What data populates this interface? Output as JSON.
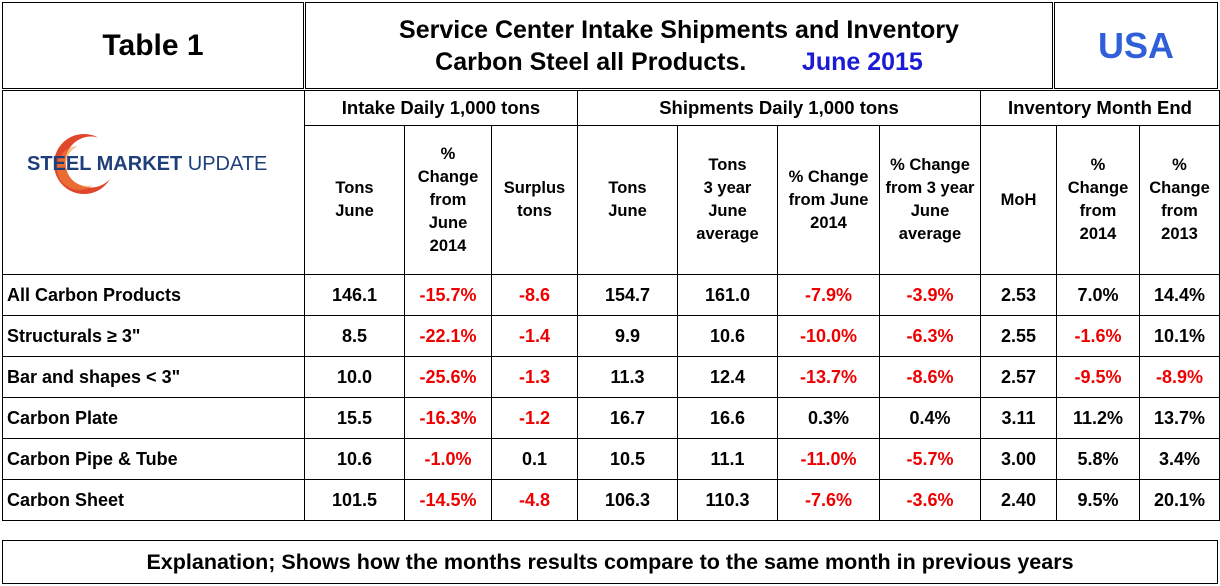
{
  "header": {
    "table_label": "Table 1",
    "title_line1": "Service Center Intake Shipments and Inventory",
    "title_line2": "Carbon Steel all Products.",
    "title_date": "June 2015",
    "country": "USA"
  },
  "logo": {
    "word1": "STEEL",
    "word2": " MARKET",
    "word3": " UPDATE",
    "colors": {
      "dark": "#1e3f7a",
      "accent": "#e0462c"
    }
  },
  "colors": {
    "negative": "#ee0000",
    "date": "#1b1bd6",
    "country": "#2f5fd9"
  },
  "chart_data": {
    "type": "table",
    "groups": [
      {
        "label": "Intake Daily 1,000 tons",
        "span": 3
      },
      {
        "label": "Shipments Daily 1,000 tons",
        "span": 4
      },
      {
        "label": "Inventory Month End",
        "span": 3
      }
    ],
    "columns": [
      [
        "Tons",
        "June"
      ],
      [
        "%",
        "Change",
        "from",
        "June",
        "2014"
      ],
      [
        "Surplus",
        "tons"
      ],
      [
        "Tons",
        "June"
      ],
      [
        "Tons",
        "3 year",
        "June",
        "average"
      ],
      [
        "% Change",
        "from June",
        "2014"
      ],
      [
        "% Change",
        "from 3 year",
        "June",
        "average"
      ],
      [
        "MoH"
      ],
      [
        "%",
        "Change",
        "from",
        "2014"
      ],
      [
        "%",
        "Change",
        "from",
        "2013"
      ]
    ],
    "rows": [
      {
        "label": "All Carbon Products",
        "values": [
          "146.1",
          "-15.7%",
          "-8.6",
          "154.7",
          "161.0",
          "-7.9%",
          "-3.9%",
          "2.53",
          "7.0%",
          "14.4%"
        ]
      },
      {
        "label": "Structurals ≥ 3\"",
        "values": [
          "8.5",
          "-22.1%",
          "-1.4",
          "9.9",
          "10.6",
          "-10.0%",
          "-6.3%",
          "2.55",
          "-1.6%",
          "10.1%"
        ]
      },
      {
        "label": "Bar and shapes < 3\"",
        "values": [
          "10.0",
          "-25.6%",
          "-1.3",
          "11.3",
          "12.4",
          "-13.7%",
          "-8.6%",
          "2.57",
          "-9.5%",
          "-8.9%"
        ]
      },
      {
        "label": "Carbon Plate",
        "values": [
          "15.5",
          "-16.3%",
          "-1.2",
          "16.7",
          "16.6",
          "0.3%",
          "0.4%",
          "3.11",
          "11.2%",
          "13.7%"
        ]
      },
      {
        "label": "Carbon Pipe & Tube",
        "values": [
          "10.6",
          "-1.0%",
          "0.1",
          "10.5",
          "11.1",
          "-11.0%",
          "-5.7%",
          "3.00",
          "5.8%",
          "3.4%"
        ]
      },
      {
        "label": "Carbon Sheet",
        "values": [
          "101.5",
          "-14.5%",
          "-4.8",
          "106.3",
          "110.3",
          "-7.6%",
          "-3.6%",
          "2.40",
          "9.5%",
          "20.1%"
        ]
      }
    ]
  },
  "footer": {
    "explanation": "Explanation; Shows how the months results compare to the same month in previous years"
  }
}
